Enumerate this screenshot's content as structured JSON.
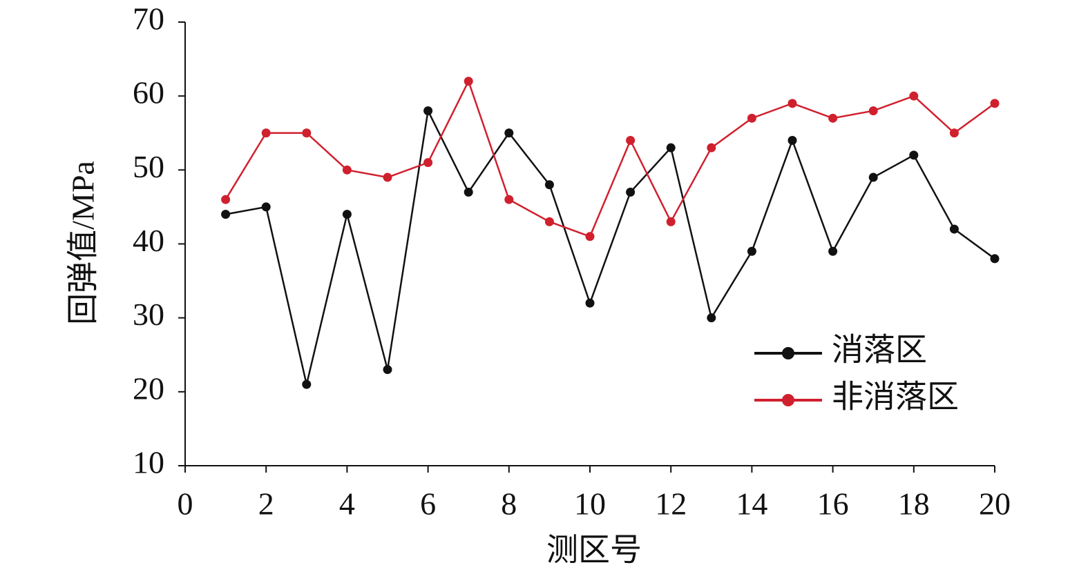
{
  "chart_data": {
    "type": "line",
    "x_label": "测区号",
    "y_label": "回弹值/MPa",
    "x": [
      1,
      2,
      3,
      4,
      5,
      6,
      7,
      8,
      9,
      10,
      11,
      12,
      13,
      14,
      15,
      16,
      17,
      18,
      19,
      20
    ],
    "series": [
      {
        "name": "消落区",
        "color": "#111111",
        "values": [
          44,
          45,
          21,
          44,
          23,
          58,
          47,
          55,
          48,
          32,
          47,
          53,
          30,
          39,
          54,
          39,
          49,
          52,
          42,
          38
        ]
      },
      {
        "name": "非消落区",
        "color": "#d0202e",
        "values": [
          46,
          55,
          55,
          50,
          49,
          51,
          62,
          46,
          43,
          41,
          54,
          43,
          53,
          57,
          59,
          57,
          58,
          60,
          55,
          59
        ]
      }
    ],
    "xlim": [
      0,
      20
    ],
    "xticks": [
      0,
      2,
      4,
      6,
      8,
      10,
      12,
      14,
      16,
      18,
      20
    ],
    "ylim": [
      10,
      70
    ],
    "yticks": [
      10,
      20,
      30,
      40,
      50,
      60,
      70
    ],
    "legend": "lower right",
    "grid": false
  }
}
